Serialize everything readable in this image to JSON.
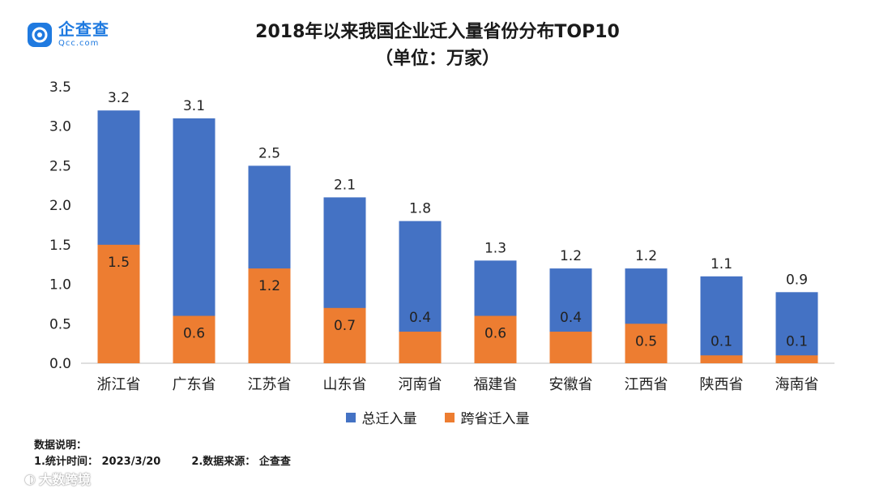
{
  "logo": {
    "name_cn": "企查查",
    "name_en": "Qcc.com"
  },
  "colors": {
    "total": "#4472c4",
    "cross": "#ed7d31",
    "brand": "#1f7ae0"
  },
  "chart_data": {
    "type": "bar",
    "title": "2018年以来我国企业迁入量省份分布TOP10",
    "subtitle": "（单位：万家）",
    "categories": [
      "浙江省",
      "广东省",
      "江苏省",
      "山东省",
      "河南省",
      "福建省",
      "安徽省",
      "江西省",
      "陕西省",
      "海南省"
    ],
    "series": [
      {
        "name": "总迁入量",
        "values": [
          3.2,
          3.1,
          2.5,
          2.1,
          1.8,
          1.3,
          1.2,
          1.2,
          1.1,
          0.9
        ]
      },
      {
        "name": "跨省迁入量",
        "values": [
          1.5,
          0.6,
          1.2,
          0.7,
          0.4,
          0.6,
          0.4,
          0.5,
          0.1,
          0.1
        ]
      }
    ],
    "ylim": [
      0,
      3.5
    ],
    "yticks": [
      "0.0",
      "0.5",
      "1.0",
      "1.5",
      "2.0",
      "2.5",
      "3.0",
      "3.5"
    ],
    "legend_position": "bottom",
    "grid": false
  },
  "notes": {
    "heading": "数据说明：",
    "stat_time": "1.统计时间：  2023/3/20",
    "source": "2.数据来源：  企查查"
  },
  "watermark": "大数跨境"
}
